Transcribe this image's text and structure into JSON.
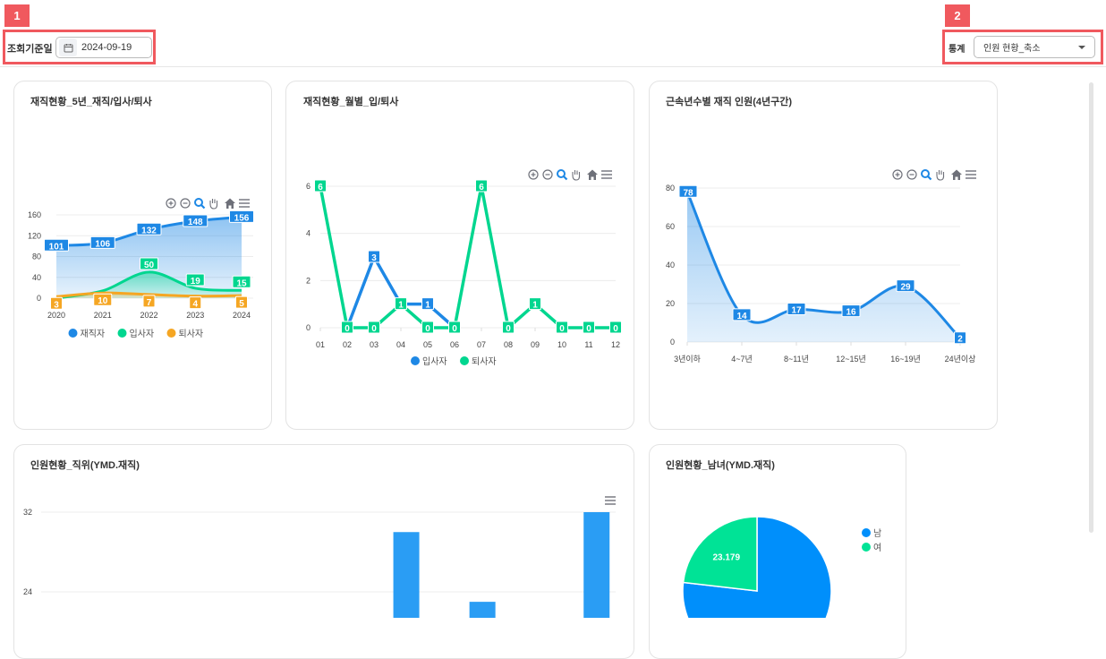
{
  "filter": {
    "badge1": "1",
    "date_label": "조회기준일",
    "date_value": "2024-09-19",
    "calendar_icon": "calendar-icon",
    "badge2": "2",
    "stat_label": "통계",
    "stat_value": "인원 현황_축소"
  },
  "toolbar_icons": [
    "zoom-in-icon",
    "zoom-out-icon",
    "selection-zoom-icon",
    "pan-icon",
    "home-icon",
    "menu-icon"
  ],
  "colors": {
    "blue": "#1e88e5",
    "green": "#00d68f",
    "orange": "#f5a623",
    "bar": "#2a9df4",
    "pie_male": "#008ffb",
    "pie_female": "#00e396",
    "badge": "#f0595e"
  },
  "chart_data": [
    {
      "type": "area",
      "title": "재직현황_5년_재직/입사/퇴사",
      "categories": [
        "2020",
        "2021",
        "2022",
        "2023",
        "2024"
      ],
      "yticks": [
        "0",
        "40",
        "80",
        "120",
        "160"
      ],
      "ylim": [
        0,
        160
      ],
      "series": [
        {
          "name": "재직자",
          "values": [
            101,
            106,
            132,
            148,
            156
          ]
        },
        {
          "name": "입사자",
          "values": [
            0,
            14,
            50,
            19,
            15
          ]
        },
        {
          "name": "퇴사자",
          "values": [
            3,
            10,
            7,
            4,
            5
          ]
        }
      ],
      "legend": "bottom"
    },
    {
      "type": "line",
      "title": "재직현황_월별_입/퇴사",
      "categories": [
        "01",
        "02",
        "03",
        "04",
        "05",
        "06",
        "07",
        "08",
        "09",
        "10",
        "11",
        "12"
      ],
      "yticks": [
        "0",
        "2",
        "4",
        "6"
      ],
      "ylim": [
        0,
        6
      ],
      "series": [
        {
          "name": "입사자",
          "values": [
            null,
            0,
            3,
            1,
            1,
            0,
            null,
            null,
            null,
            null,
            null,
            null
          ]
        },
        {
          "name": "퇴사자",
          "values": [
            6,
            0,
            0,
            1,
            0,
            0,
            6,
            0,
            1,
            0,
            0,
            0
          ]
        }
      ],
      "legend": "bottom"
    },
    {
      "type": "area",
      "title": "근속년수별 재직 인원(4년구간)",
      "categories": [
        "3년이하",
        "4~7년",
        "8~11년",
        "12~15년",
        "16~19년",
        "24년이상"
      ],
      "yticks": [
        "0",
        "20",
        "40",
        "60",
        "80"
      ],
      "ylim": [
        0,
        80
      ],
      "series": [
        {
          "values": [
            78,
            14,
            17,
            16,
            29,
            2
          ]
        }
      ]
    },
    {
      "type": "bar",
      "title": "인원현황_직위(YMD.재직)",
      "yticks": [
        "24",
        "32"
      ],
      "values": [
        null,
        null,
        null,
        null,
        null,
        null,
        null,
        null,
        null,
        30,
        null,
        23,
        null,
        null,
        32
      ]
    },
    {
      "type": "pie",
      "title": "인원현황_남녀(YMD.재직)",
      "slices": [
        {
          "name": "남",
          "value": 76.821
        },
        {
          "name": "여",
          "value": 23.179,
          "label": "23.179"
        }
      ],
      "legend": "right"
    }
  ]
}
